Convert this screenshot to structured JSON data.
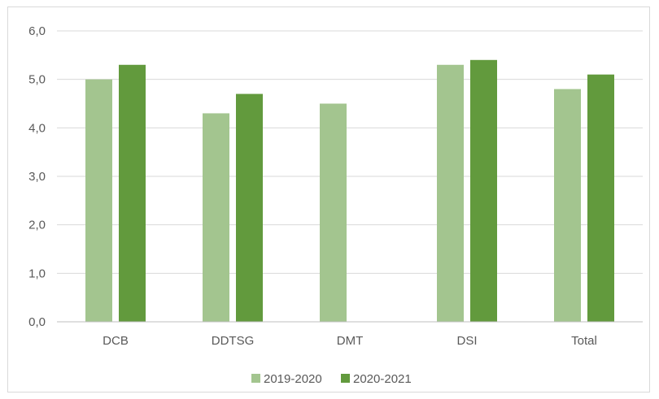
{
  "chart_data": {
    "type": "bar",
    "title": "",
    "xlabel": "",
    "ylabel": "",
    "categories": [
      "DCB",
      "DDTSG",
      "DMT",
      "DSI",
      "Total"
    ],
    "series": [
      {
        "name": "2019-2020",
        "color": "#a3c58f",
        "values": [
          5.0,
          4.3,
          4.5,
          5.3,
          4.8
        ]
      },
      {
        "name": "2020-2021",
        "color": "#629a3d",
        "values": [
          5.3,
          4.7,
          null,
          5.4,
          5.1
        ]
      }
    ],
    "ylim": [
      0,
      6
    ],
    "yticks": [
      "0,0",
      "1,0",
      "2,0",
      "3,0",
      "4,0",
      "5,0",
      "6,0"
    ],
    "grid": true,
    "legend_position": "bottom"
  }
}
